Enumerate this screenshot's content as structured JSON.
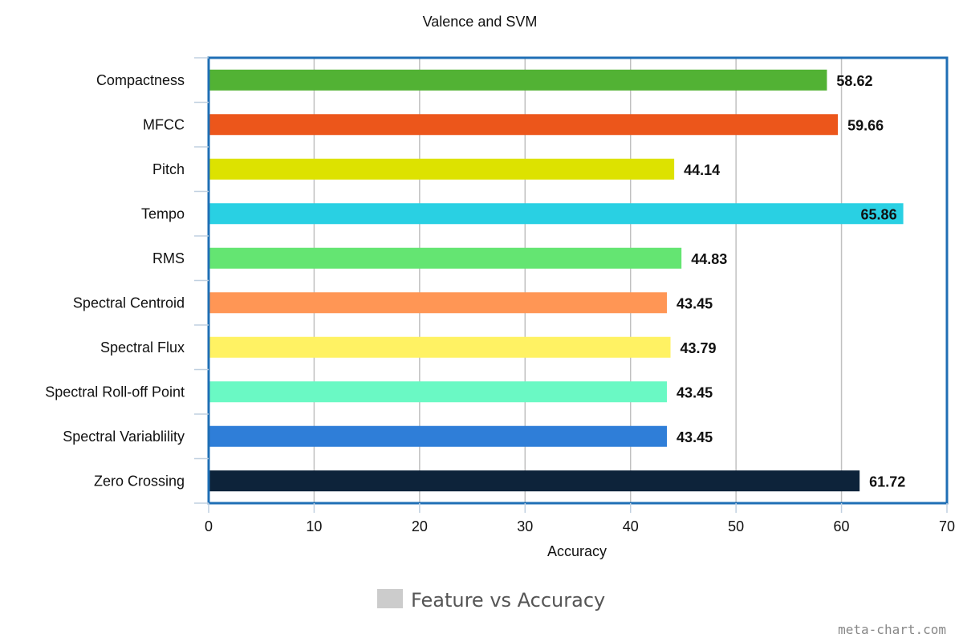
{
  "chart_data": {
    "type": "bar",
    "orientation": "horizontal",
    "title": "Valence and SVM",
    "xlabel": "Accuracy",
    "ylabel": "",
    "xlim": [
      0,
      70
    ],
    "x_ticks": [
      "0",
      "10",
      "20",
      "30",
      "40",
      "50",
      "60",
      "70"
    ],
    "grid": true,
    "categories": [
      "Compactness",
      "MFCC",
      "Pitch",
      "Tempo",
      "RMS",
      "Spectral Centroid",
      "Spectral Flux",
      "Spectral Roll-off Point",
      "Spectral Variablility",
      "Zero Crossing"
    ],
    "values": [
      58.62,
      59.66,
      44.14,
      65.86,
      44.83,
      43.45,
      43.79,
      43.45,
      43.45,
      61.72
    ],
    "value_labels": [
      "58.62",
      "59.66",
      "44.14",
      "65.86",
      "44.83",
      "43.45",
      "43.79",
      "43.45",
      "43.45",
      "61.72"
    ],
    "bar_colors": [
      "#52b234",
      "#ec561b",
      "#dde200",
      "#29d0e3",
      "#64e572",
      "#ff9655",
      "#fff263",
      "#6af9c4",
      "#2f7ed8",
      "#0d233a"
    ],
    "legend": {
      "position": "bottom-center",
      "label": "Feature vs Accuracy",
      "color": "#cccccc"
    }
  },
  "frame_color": "#1f6fb5",
  "credit": "meta-chart.com"
}
